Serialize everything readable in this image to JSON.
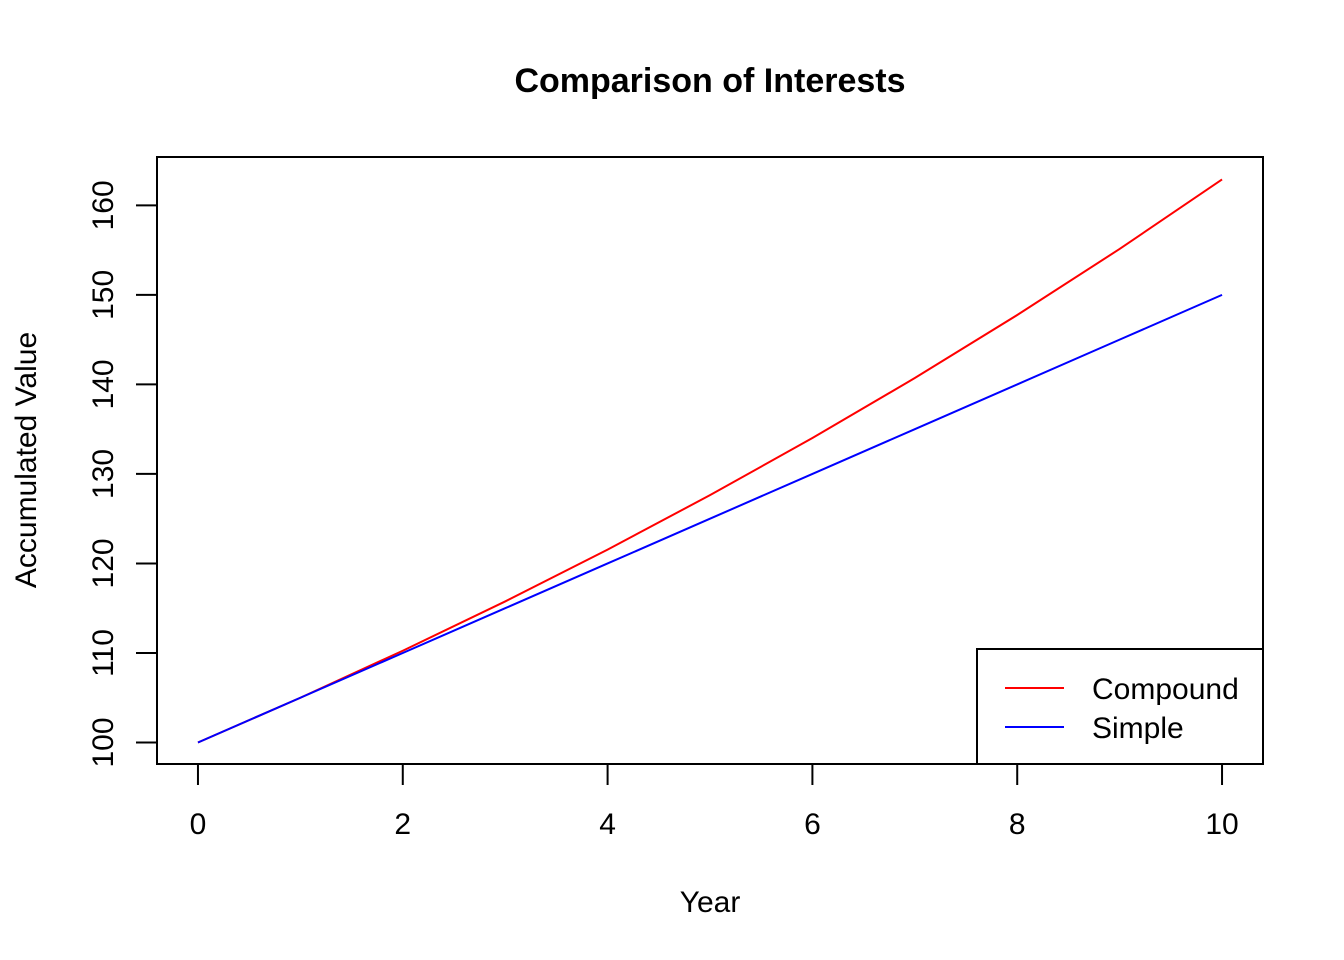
{
  "chart_data": {
    "type": "line",
    "title": "Comparison of Interests",
    "xlabel": "Year",
    "ylabel": "Accumulated Value",
    "x": [
      0,
      1,
      2,
      3,
      4,
      5,
      6,
      7,
      8,
      9,
      10
    ],
    "xlim": [
      -0.4,
      10.4
    ],
    "ylim": [
      97.6,
      165.4
    ],
    "xticks": [
      0,
      2,
      4,
      6,
      8,
      10
    ],
    "yticks": [
      100,
      110,
      120,
      130,
      140,
      150,
      160
    ],
    "grid": false,
    "legend_position": "bottom-right",
    "series": [
      {
        "name": "Compound",
        "color": "#ff0000",
        "values": [
          100,
          105,
          110.25,
          115.76,
          121.55,
          127.63,
          134.01,
          140.71,
          147.75,
          155.13,
          162.89
        ]
      },
      {
        "name": "Simple",
        "color": "#0000ff",
        "values": [
          100,
          105,
          110,
          115,
          120,
          125,
          130,
          135,
          140,
          145,
          150
        ]
      }
    ]
  }
}
